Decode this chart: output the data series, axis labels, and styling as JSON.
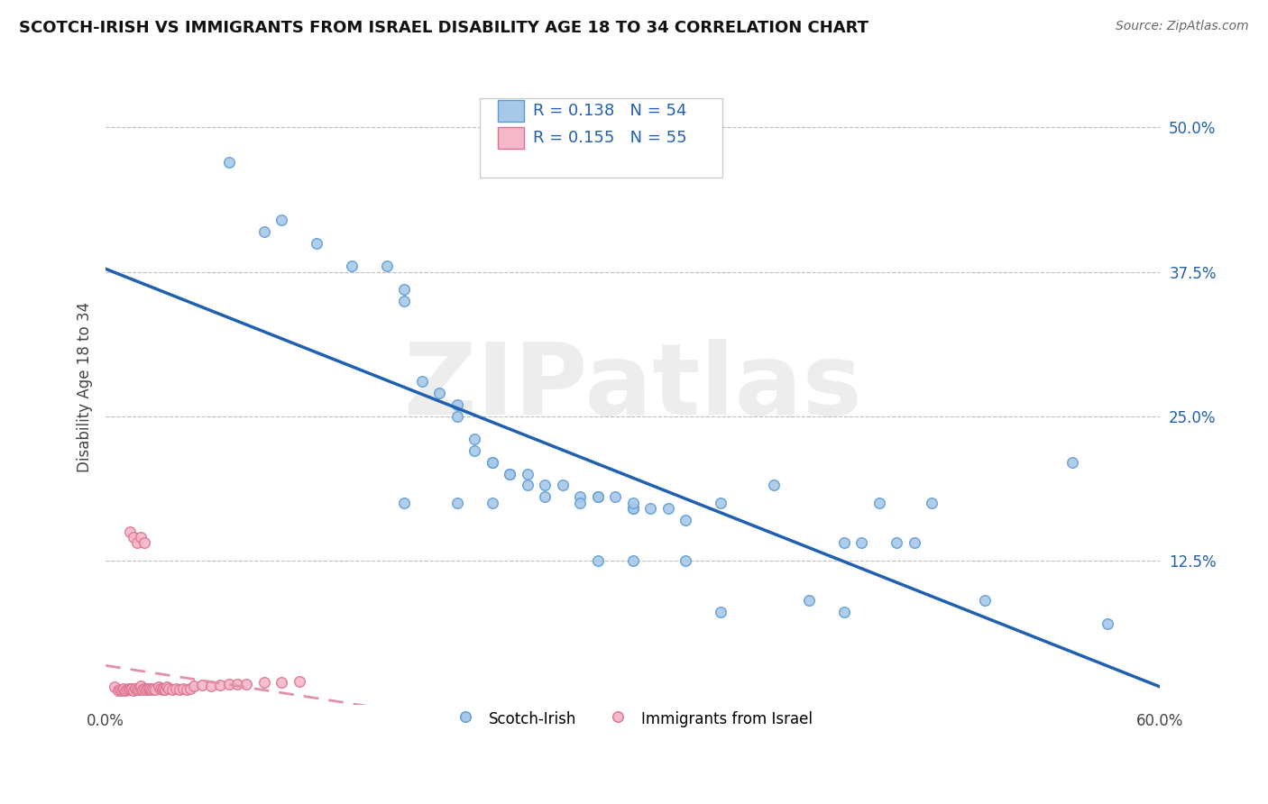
{
  "title": "SCOTCH-IRISH VS IMMIGRANTS FROM ISRAEL DISABILITY AGE 18 TO 34 CORRELATION CHART",
  "source": "Source: ZipAtlas.com",
  "ylabel": "Disability Age 18 to 34",
  "xlim": [
    0.0,
    0.6
  ],
  "ylim": [
    0.0,
    0.55
  ],
  "ytick_positions": [
    0.0,
    0.125,
    0.25,
    0.375,
    0.5
  ],
  "ytick_labels": [
    "",
    "12.5%",
    "25.0%",
    "37.5%",
    "50.0%"
  ],
  "R_blue": 0.138,
  "N_blue": 54,
  "R_pink": 0.155,
  "N_pink": 55,
  "blue_color": "#a8c8e8",
  "blue_edge_color": "#5b9bd5",
  "pink_color": "#f4b8c8",
  "pink_edge_color": "#e07090",
  "blue_line_color": "#2060b0",
  "pink_line_color": "#e090a8",
  "watermark_text": "ZIPatlas",
  "legend_label_blue": "Scotch-Irish",
  "legend_label_pink": "Immigrants from Israel",
  "blue_scatter_x": [
    0.07,
    0.09,
    0.1,
    0.12,
    0.14,
    0.16,
    0.17,
    0.17,
    0.18,
    0.19,
    0.2,
    0.2,
    0.21,
    0.21,
    0.22,
    0.22,
    0.23,
    0.23,
    0.24,
    0.24,
    0.25,
    0.26,
    0.27,
    0.28,
    0.28,
    0.29,
    0.3,
    0.3,
    0.31,
    0.32,
    0.33,
    0.17,
    0.2,
    0.22,
    0.25,
    0.27,
    0.3,
    0.35,
    0.38,
    0.42,
    0.43,
    0.44,
    0.45,
    0.46,
    0.47,
    0.28,
    0.3,
    0.33,
    0.35,
    0.4,
    0.42,
    0.5,
    0.55,
    0.57
  ],
  "blue_scatter_y": [
    0.47,
    0.41,
    0.42,
    0.4,
    0.38,
    0.38,
    0.36,
    0.35,
    0.28,
    0.27,
    0.26,
    0.25,
    0.23,
    0.22,
    0.21,
    0.21,
    0.2,
    0.2,
    0.2,
    0.19,
    0.19,
    0.19,
    0.18,
    0.18,
    0.18,
    0.18,
    0.17,
    0.17,
    0.17,
    0.17,
    0.16,
    0.175,
    0.175,
    0.175,
    0.18,
    0.175,
    0.175,
    0.175,
    0.19,
    0.14,
    0.14,
    0.175,
    0.14,
    0.14,
    0.175,
    0.125,
    0.125,
    0.125,
    0.08,
    0.09,
    0.08,
    0.09,
    0.21,
    0.07
  ],
  "pink_scatter_x": [
    0.005,
    0.007,
    0.008,
    0.009,
    0.01,
    0.01,
    0.011,
    0.012,
    0.013,
    0.014,
    0.015,
    0.015,
    0.016,
    0.017,
    0.018,
    0.019,
    0.02,
    0.02,
    0.021,
    0.022,
    0.023,
    0.024,
    0.025,
    0.025,
    0.026,
    0.027,
    0.028,
    0.03,
    0.031,
    0.032,
    0.033,
    0.034,
    0.035,
    0.036,
    0.038,
    0.04,
    0.042,
    0.044,
    0.046,
    0.048,
    0.05,
    0.055,
    0.06,
    0.065,
    0.07,
    0.075,
    0.08,
    0.09,
    0.1,
    0.11,
    0.014,
    0.016,
    0.018,
    0.02,
    0.022
  ],
  "pink_scatter_y": [
    0.015,
    0.012,
    0.013,
    0.012,
    0.013,
    0.014,
    0.012,
    0.013,
    0.014,
    0.013,
    0.013,
    0.014,
    0.012,
    0.014,
    0.013,
    0.013,
    0.014,
    0.016,
    0.013,
    0.014,
    0.013,
    0.014,
    0.013,
    0.014,
    0.013,
    0.014,
    0.013,
    0.015,
    0.014,
    0.013,
    0.014,
    0.013,
    0.015,
    0.014,
    0.013,
    0.014,
    0.013,
    0.014,
    0.013,
    0.014,
    0.016,
    0.017,
    0.016,
    0.017,
    0.018,
    0.018,
    0.018,
    0.019,
    0.019,
    0.02,
    0.15,
    0.145,
    0.14,
    0.145,
    0.14
  ]
}
